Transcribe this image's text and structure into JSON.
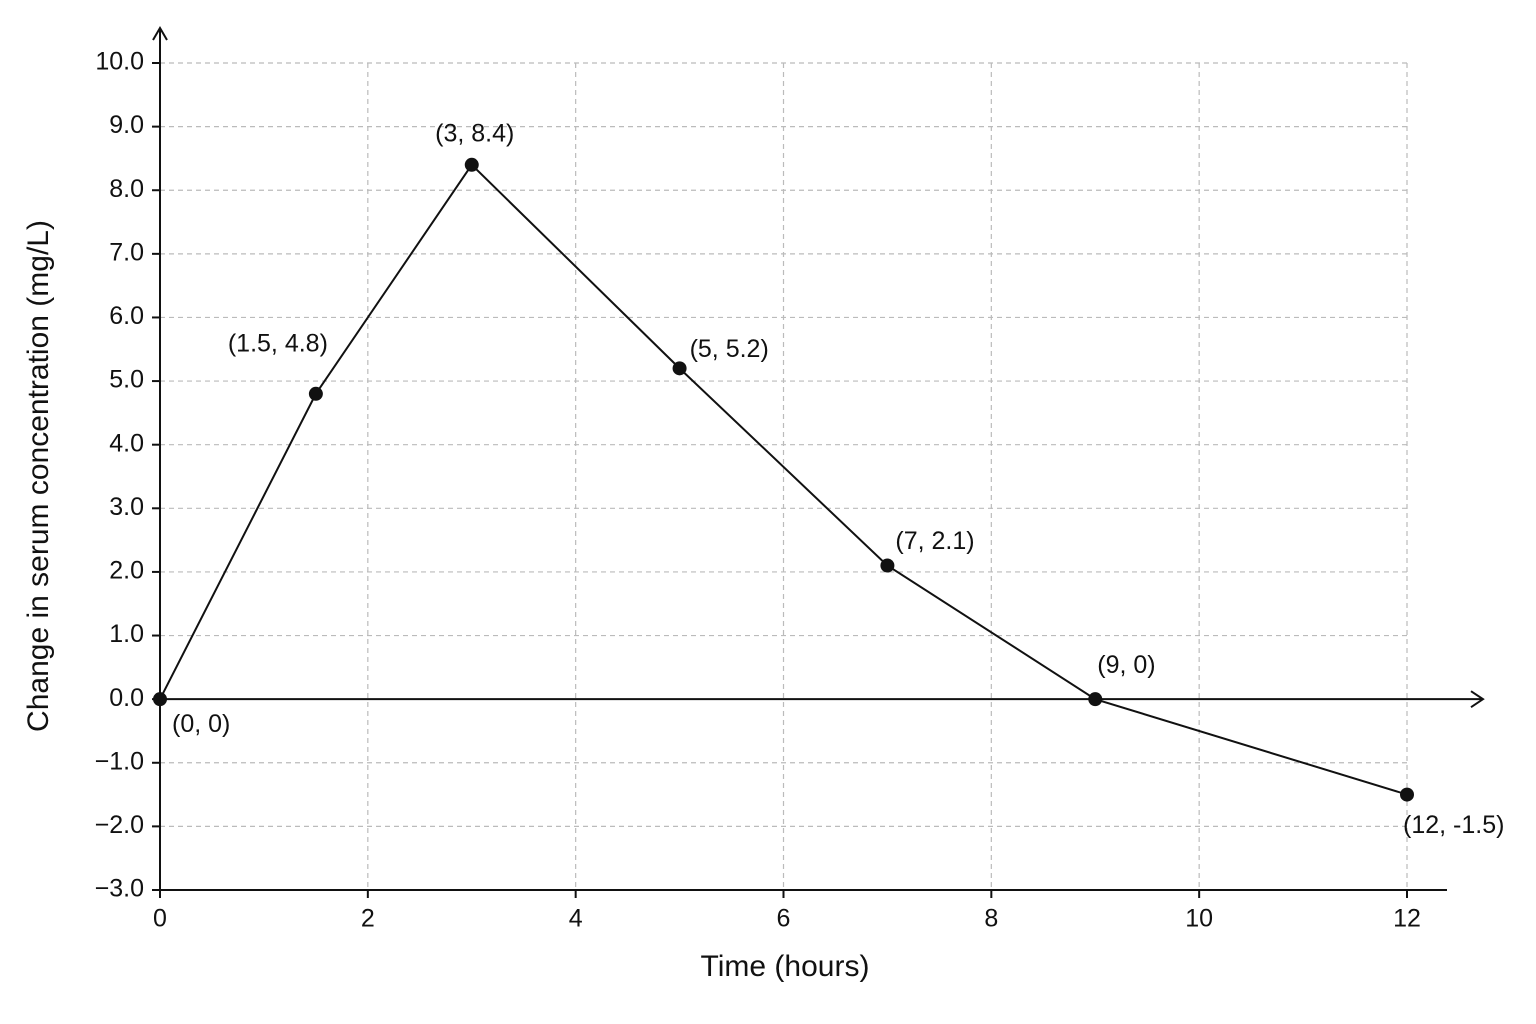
{
  "chart_data": {
    "type": "line",
    "x_label": "Time (hours)",
    "y_label": "Change in serum concentration (mg/L)",
    "x": [
      0,
      1.5,
      3,
      5,
      7,
      9,
      12
    ],
    "series": [
      {
        "color": "#111111",
        "values": [
          0,
          4.8,
          8.4,
          5.2,
          2.1,
          0,
          -1.5
        ],
        "value_labels": [
          "(0, 0)",
          "(1.5, 4.8)",
          "(3, 8.4)",
          "(5, 5.2)",
          "(7, 2.1)",
          "(9, 0)",
          "(12, -1.5)"
        ]
      }
    ],
    "xlim": [
      0,
      12
    ],
    "ylim": [
      -3,
      10
    ],
    "xticks": [
      0,
      2,
      4,
      6,
      8,
      10,
      12
    ],
    "yticks": [
      {
        "value": -3,
        "label": "−3.0"
      },
      {
        "value": -2,
        "label": "−2.0"
      },
      {
        "value": -1,
        "label": "−1.0"
      },
      {
        "value": 0,
        "label": "0.0"
      },
      {
        "value": 1,
        "label": "1.0"
      },
      {
        "value": 2,
        "label": "2.0"
      },
      {
        "value": 3,
        "label": "3.0"
      },
      {
        "value": 4,
        "label": "4.0"
      },
      {
        "value": 5,
        "label": "5.0"
      },
      {
        "value": 6,
        "label": "6.0"
      },
      {
        "value": 7,
        "label": "7.0"
      },
      {
        "value": 8,
        "label": "8.0"
      },
      {
        "value": 9,
        "label": "9.0"
      },
      {
        "value": 10,
        "label": "10.0"
      }
    ],
    "grid": true
  }
}
